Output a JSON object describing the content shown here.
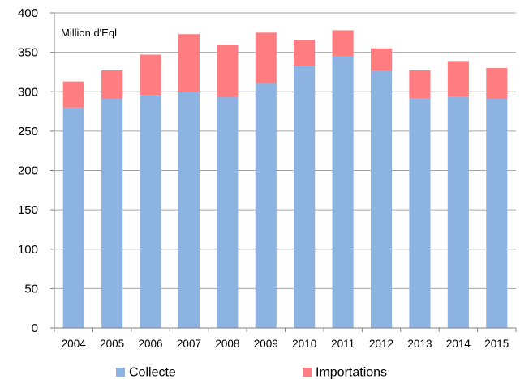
{
  "chart_data": {
    "type": "bar",
    "stacked": true,
    "unit_label": "Million d'Eql",
    "categories": [
      "2004",
      "2005",
      "2006",
      "2007",
      "2008",
      "2009",
      "2010",
      "2011",
      "2012",
      "2013",
      "2014",
      "2015"
    ],
    "series": [
      {
        "name": "Collecte",
        "color": "#8db3e2",
        "values": [
          280,
          291,
          296,
          300,
          293,
          311,
          333,
          345,
          327,
          292,
          294,
          291
        ]
      },
      {
        "name": "Importations",
        "color": "#ff7c80",
        "values": [
          33,
          36,
          51,
          73,
          66,
          64,
          33,
          33,
          28,
          35,
          45,
          39
        ]
      }
    ],
    "ylim": [
      0,
      400
    ],
    "yticks": [
      "0",
      "50",
      "100",
      "150",
      "200",
      "250",
      "300",
      "350",
      "400"
    ],
    "grid": true,
    "legend": "bottom"
  }
}
